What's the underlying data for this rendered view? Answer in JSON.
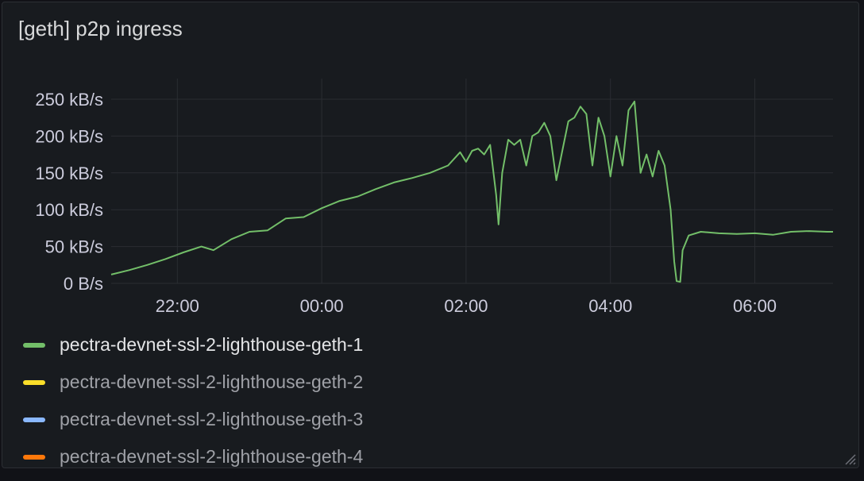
{
  "panel": {
    "title": "[geth] p2p ingress"
  },
  "chart_data": {
    "type": "line",
    "title": "[geth] p2p ingress",
    "x_ticks": [
      "22:00",
      "00:00",
      "02:00",
      "04:00",
      "06:00"
    ],
    "x_range": [
      "21:05",
      "07:05"
    ],
    "y_ticks": [
      "0 B/s",
      "50 kB/s",
      "100 kB/s",
      "150 kB/s",
      "200 kB/s",
      "250 kB/s"
    ],
    "y_range_kBps": [
      0,
      250
    ],
    "grid": true,
    "legend_position": "bottom",
    "series": [
      {
        "name": "pectra-devnet-ssl-2-lighthouse-geth-1",
        "color": "#73bf69",
        "active": true,
        "points": [
          [
            "21:05",
            12
          ],
          [
            "21:20",
            18
          ],
          [
            "21:35",
            25
          ],
          [
            "21:50",
            33
          ],
          [
            "22:05",
            42
          ],
          [
            "22:20",
            50
          ],
          [
            "22:30",
            45
          ],
          [
            "22:45",
            60
          ],
          [
            "23:00",
            70
          ],
          [
            "23:15",
            72
          ],
          [
            "23:30",
            88
          ],
          [
            "23:45",
            90
          ],
          [
            "00:00",
            102
          ],
          [
            "00:15",
            112
          ],
          [
            "00:30",
            118
          ],
          [
            "00:45",
            128
          ],
          [
            "01:00",
            137
          ],
          [
            "01:15",
            143
          ],
          [
            "01:30",
            150
          ],
          [
            "01:45",
            160
          ],
          [
            "01:55",
            178
          ],
          [
            "02:00",
            165
          ],
          [
            "02:05",
            180
          ],
          [
            "02:10",
            183
          ],
          [
            "02:15",
            175
          ],
          [
            "02:20",
            188
          ],
          [
            "02:25",
            120
          ],
          [
            "02:27",
            80
          ],
          [
            "02:30",
            150
          ],
          [
            "02:35",
            195
          ],
          [
            "02:40",
            188
          ],
          [
            "02:45",
            195
          ],
          [
            "02:50",
            160
          ],
          [
            "02:55",
            200
          ],
          [
            "03:00",
            205
          ],
          [
            "03:05",
            218
          ],
          [
            "03:10",
            200
          ],
          [
            "03:15",
            140
          ],
          [
            "03:20",
            180
          ],
          [
            "03:25",
            220
          ],
          [
            "03:30",
            225
          ],
          [
            "03:35",
            240
          ],
          [
            "03:40",
            230
          ],
          [
            "03:45",
            160
          ],
          [
            "03:50",
            225
          ],
          [
            "03:55",
            200
          ],
          [
            "04:00",
            145
          ],
          [
            "04:05",
            200
          ],
          [
            "04:10",
            160
          ],
          [
            "04:15",
            235
          ],
          [
            "04:20",
            247
          ],
          [
            "04:25",
            150
          ],
          [
            "04:30",
            175
          ],
          [
            "04:35",
            145
          ],
          [
            "04:40",
            180
          ],
          [
            "04:45",
            160
          ],
          [
            "04:50",
            100
          ],
          [
            "04:53",
            30
          ],
          [
            "04:55",
            3
          ],
          [
            "04:58",
            2
          ],
          [
            "05:00",
            45
          ],
          [
            "05:05",
            65
          ],
          [
            "05:15",
            70
          ],
          [
            "05:30",
            68
          ],
          [
            "05:45",
            67
          ],
          [
            "06:00",
            68
          ],
          [
            "06:15",
            66
          ],
          [
            "06:30",
            70
          ],
          [
            "06:45",
            71
          ],
          [
            "07:00",
            70
          ],
          [
            "07:05",
            70
          ]
        ]
      },
      {
        "name": "pectra-devnet-ssl-2-lighthouse-geth-2",
        "color": "#fade2a",
        "active": false,
        "points": []
      },
      {
        "name": "pectra-devnet-ssl-2-lighthouse-geth-3",
        "color": "#8ab8ff",
        "active": false,
        "points": []
      },
      {
        "name": "pectra-devnet-ssl-2-lighthouse-geth-4",
        "color": "#ff780a",
        "active": false,
        "points": []
      }
    ]
  }
}
